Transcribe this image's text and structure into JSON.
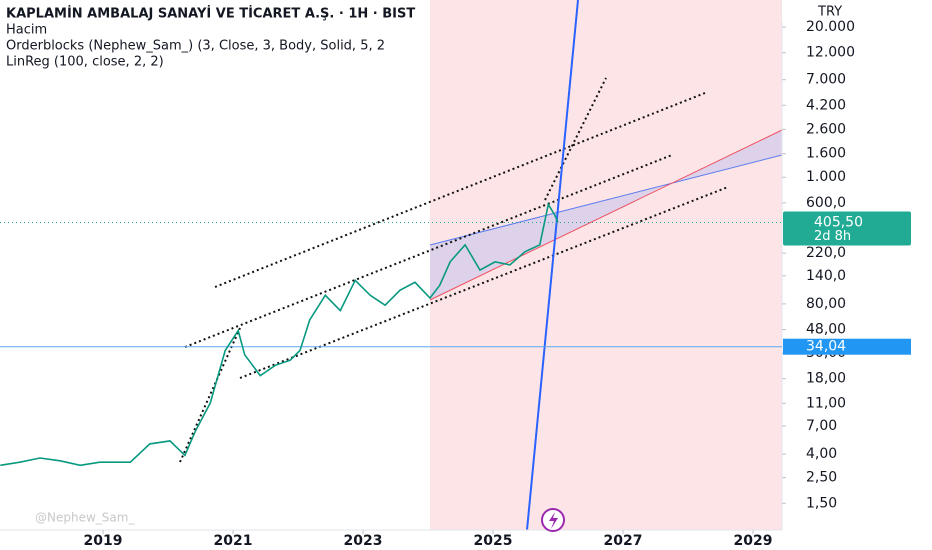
{
  "chart_data": {
    "type": "line",
    "title": "KAPLAMİN AMBALAJ SANAYİ VE TİCARET A.Ş. · 1H · BIST",
    "indicators": [
      "Hacim",
      "Orderblocks (Nephew_Sam_) (3, Close, 3, Body, Solid, 5, 2",
      "LinReg (100, close, 2, 2)"
    ],
    "currency": "TRY",
    "log_scale": true,
    "x": [
      2017.42,
      2017.72,
      2018.03,
      2018.34,
      2018.65,
      2018.95,
      2019.42,
      2019.72,
      2020.03,
      2020.26,
      2020.42,
      2020.65,
      2020.88,
      2021.08,
      2021.18,
      2021.42,
      2021.65,
      2021.88,
      2022.03,
      2022.18,
      2022.42,
      2022.65,
      2022.88,
      2023.11,
      2023.34,
      2023.57,
      2023.8,
      2024.03,
      2024.18,
      2024.34,
      2024.57,
      2024.8,
      2025.03,
      2025.26,
      2025.49,
      2025.72,
      2025.85,
      2025.95,
      2026.0
    ],
    "values": [
      3.2,
      3.4,
      3.7,
      3.5,
      3.2,
      3.4,
      3.4,
      4.9,
      5.2,
      3.9,
      6.3,
      11.1,
      31.6,
      47,
      29,
      19.1,
      23.5,
      26,
      31.6,
      58,
      95,
      70,
      128,
      95,
      78,
      105,
      123,
      90,
      116,
      185,
      260,
      157,
      185,
      174,
      226,
      260,
      582,
      470,
      405.5
    ],
    "color": "#089981",
    "xlim": [
      2017.415,
      2029.446
    ],
    "xticks": [
      2019,
      2021,
      2023,
      2025,
      2027,
      2029
    ],
    "ylim": [
      0.88,
      34300
    ],
    "yticks": [
      {
        "value": 20000,
        "label": "20.000"
      },
      {
        "value": 12000,
        "label": "12.000"
      },
      {
        "value": 7000,
        "label": "7.000"
      },
      {
        "value": 4200,
        "label": "4.200"
      },
      {
        "value": 2600,
        "label": "2.600"
      },
      {
        "value": 1600,
        "label": "1.600"
      },
      {
        "value": 1000,
        "label": "1.000"
      },
      {
        "value": 600,
        "label": "600,0"
      },
      {
        "value": 220,
        "label": "220,0"
      },
      {
        "value": 140,
        "label": "140,0"
      },
      {
        "value": 80,
        "label": "80,00"
      },
      {
        "value": 48,
        "label": "48,00"
      },
      {
        "value": 30,
        "label": "30,00"
      },
      {
        "value": 18,
        "label": "18,00"
      },
      {
        "value": 11,
        "label": "11,00"
      },
      {
        "value": 7,
        "label": "7,00"
      },
      {
        "value": 4,
        "label": "4,00"
      },
      {
        "value": 2.5,
        "label": "2,50"
      },
      {
        "value": 1.5,
        "label": "1,50"
      }
    ],
    "last_price": {
      "value": 405.5,
      "label": "405,50"
    },
    "countdown": "2d 8h",
    "price_line": {
      "value": 34.04,
      "label": "34,04"
    },
    "watermark": "@Nephew_Sam_"
  }
}
